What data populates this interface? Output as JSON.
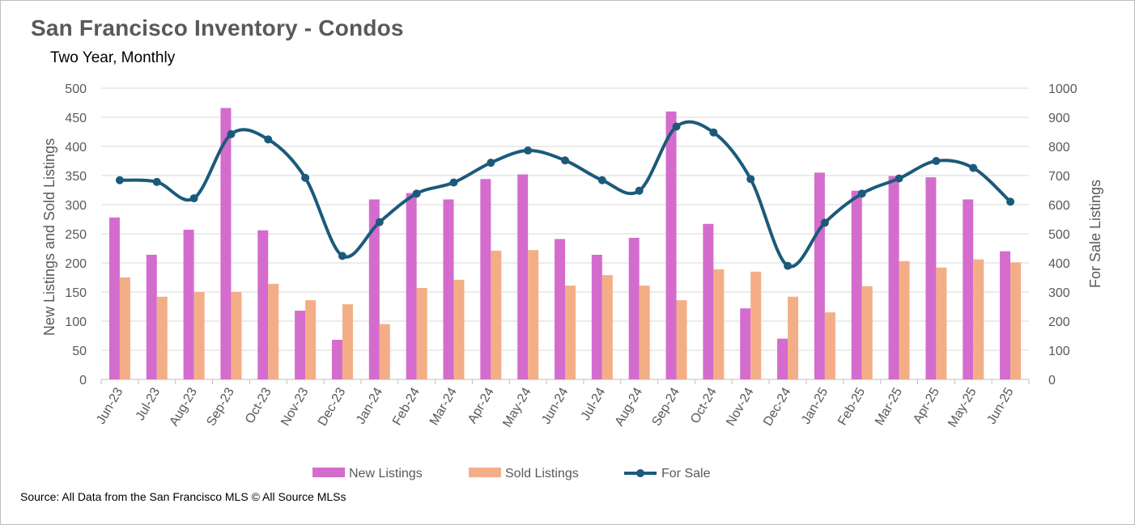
{
  "title": "San Francisco  Inventory - Condos",
  "subtitle": "Two Year, Monthly",
  "source": "Source: All Data from the San Francisco MLS © All Source MLSs",
  "colors": {
    "new_listings": "#d46ccd",
    "sold_listings": "#f4ae87",
    "for_sale": "#1b5a7a",
    "axis_text": "#595959",
    "gridline": "#d9d9d9"
  },
  "chart_data": {
    "type": "bar",
    "title": "San Francisco  Inventory - Condos",
    "subtitle": "Two Year, Monthly",
    "categories": [
      "Jun-23",
      "Jul-23",
      "Aug-23",
      "Sep-23",
      "Oct-23",
      "Nov-23",
      "Dec-23",
      "Jan-24",
      "Feb-24",
      "Mar-24",
      "Apr-24",
      "May-24",
      "Jun-24",
      "Jul-24",
      "Aug-24",
      "Sep-24",
      "Oct-24",
      "Nov-24",
      "Dec-24",
      "Jan-25",
      "Feb-25",
      "Mar-25",
      "Apr-25",
      "May-25",
      "Jun-25"
    ],
    "series": [
      {
        "name": "New Listings",
        "type": "bar",
        "axis": "left",
        "values": [
          278,
          214,
          257,
          466,
          256,
          118,
          68,
          309,
          320,
          309,
          344,
          352,
          241,
          214,
          243,
          460,
          267,
          122,
          70,
          355,
          324,
          349,
          347,
          309,
          220
        ]
      },
      {
        "name": "Sold Listings",
        "type": "bar",
        "axis": "left",
        "values": [
          175,
          142,
          150,
          150,
          164,
          136,
          129,
          95,
          157,
          171,
          221,
          222,
          161,
          179,
          161,
          136,
          189,
          185,
          142,
          115,
          160,
          203,
          192,
          206,
          201
        ]
      },
      {
        "name": "For Sale",
        "type": "line",
        "axis": "right",
        "values": [
          684,
          678,
          622,
          842,
          824,
          692,
          424,
          540,
          638,
          676,
          744,
          786,
          752,
          684,
          648,
          868,
          848,
          688,
          390,
          538,
          638,
          690,
          750,
          726,
          610
        ]
      }
    ],
    "ylabel": "New Listings and Sold Listings",
    "y2label": "For Sale Listings",
    "ylim": [
      0,
      500
    ],
    "y2lim": [
      0,
      1000
    ],
    "yticks": [
      0,
      50,
      100,
      150,
      200,
      250,
      300,
      350,
      400,
      450,
      500
    ],
    "y2ticks": [
      0,
      100,
      200,
      300,
      400,
      500,
      600,
      700,
      800,
      900,
      1000
    ],
    "grid": true,
    "legend_position": "bottom"
  }
}
